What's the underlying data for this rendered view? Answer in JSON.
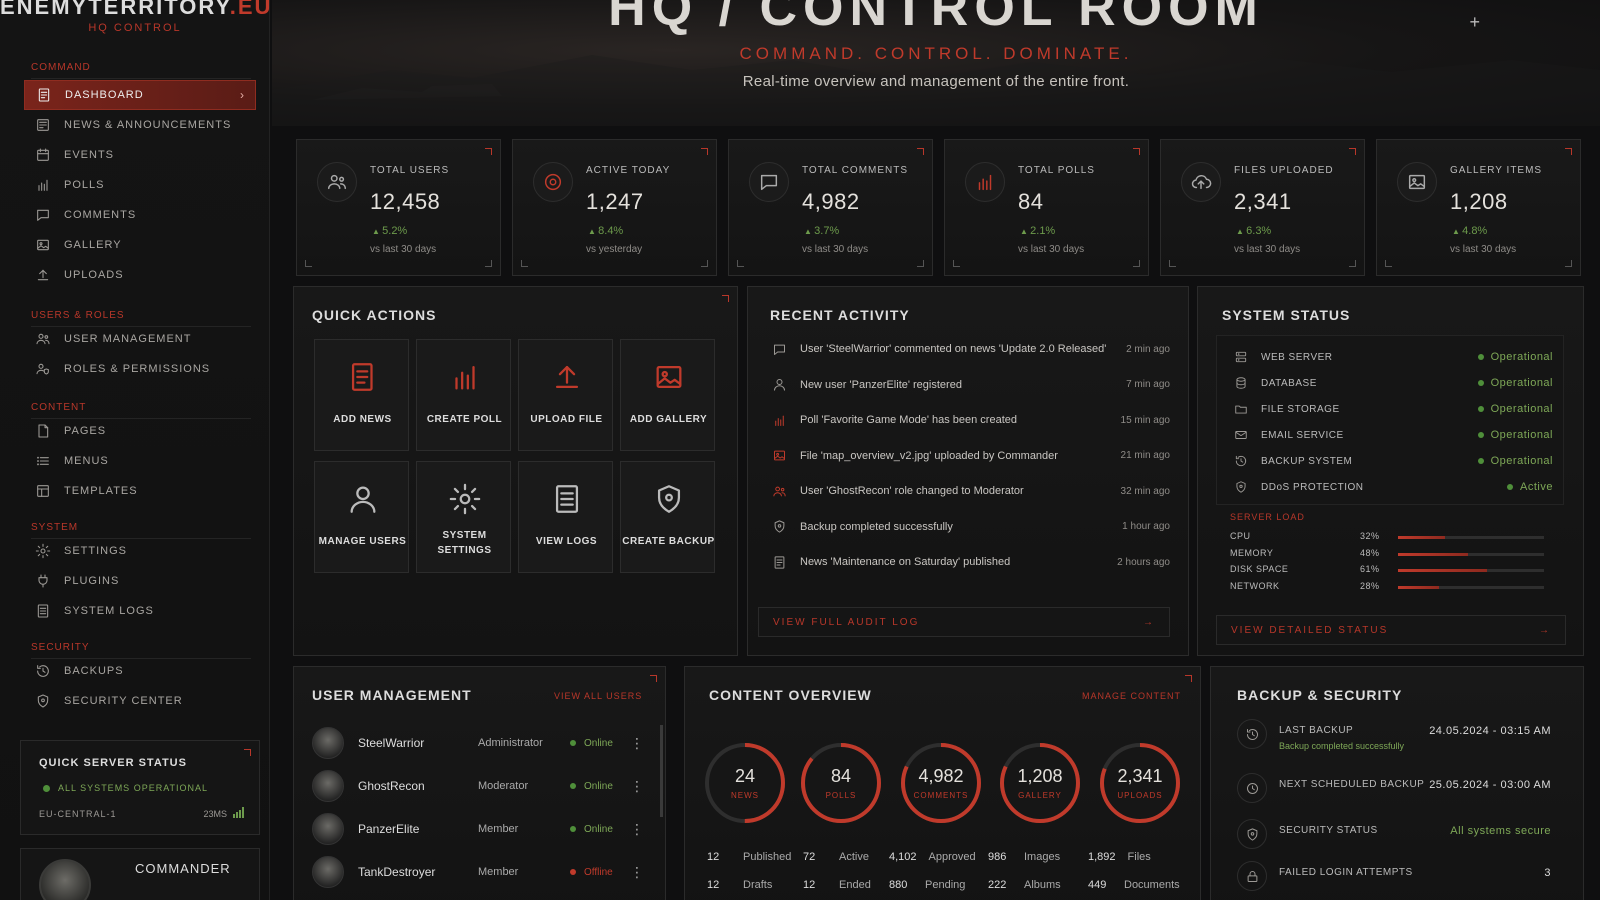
{
  "brand": {
    "name_main": "ENEMYTERRITORY",
    "name_tld": ".EU",
    "subtitle": "HQ CONTROL"
  },
  "sidebar": {
    "sections": [
      {
        "title": "COMMAND",
        "items": [
          {
            "label": "DASHBOARD",
            "icon": "document-icon",
            "active": true
          },
          {
            "label": "NEWS & ANNOUNCEMENTS",
            "icon": "news-icon"
          },
          {
            "label": "EVENTS",
            "icon": "calendar-icon"
          },
          {
            "label": "POLLS",
            "icon": "bar-chart-icon"
          },
          {
            "label": "COMMENTS",
            "icon": "comment-icon"
          },
          {
            "label": "GALLERY",
            "icon": "image-icon"
          },
          {
            "label": "UPLOADS",
            "icon": "upload-icon"
          }
        ]
      },
      {
        "title": "USERS & ROLES",
        "items": [
          {
            "label": "USER MANAGEMENT",
            "icon": "users-icon"
          },
          {
            "label": "ROLES & PERMISSIONS",
            "icon": "user-shield-icon"
          }
        ]
      },
      {
        "title": "CONTENT",
        "items": [
          {
            "label": "PAGES",
            "icon": "page-icon"
          },
          {
            "label": "MENUS",
            "icon": "menu-icon"
          },
          {
            "label": "TEMPLATES",
            "icon": "template-icon"
          }
        ]
      },
      {
        "title": "SYSTEM",
        "items": [
          {
            "label": "SETTINGS",
            "icon": "gear-icon"
          },
          {
            "label": "PLUGINS",
            "icon": "plugin-icon"
          },
          {
            "label": "SYSTEM LOGS",
            "icon": "log-icon"
          }
        ]
      },
      {
        "title": "SECURITY",
        "items": [
          {
            "label": "BACKUPS",
            "icon": "backup-icon"
          },
          {
            "label": "SECURITY CENTER",
            "icon": "shield-icon"
          }
        ]
      }
    ],
    "quick_server_status": {
      "title": "QUICK SERVER STATUS",
      "status": "ALL SYSTEMS OPERATIONAL",
      "region": "EU-CENTRAL-1",
      "ping": "23MS"
    },
    "user": {
      "name": "COMMANDER"
    }
  },
  "header": {
    "title": "HQ / CONTROL ROOM",
    "tagline": "COMMAND. CONTROL. DOMINATE.",
    "description": "Real-time overview and management of the entire front."
  },
  "stats": [
    {
      "label": "TOTAL USERS",
      "value": "12,458",
      "delta": "5.2%",
      "sub": "vs last 30 days",
      "icon": "users-icon"
    },
    {
      "label": "ACTIVE TODAY",
      "value": "1,247",
      "delta": "8.4%",
      "sub": "vs yesterday",
      "icon": "target-icon"
    },
    {
      "label": "TOTAL COMMENTS",
      "value": "4,982",
      "delta": "3.7%",
      "sub": "vs last 30 days",
      "icon": "comment-icon"
    },
    {
      "label": "TOTAL POLLS",
      "value": "84",
      "delta": "2.1%",
      "sub": "vs last 30 days",
      "icon": "bar-chart-icon"
    },
    {
      "label": "FILES UPLOADED",
      "value": "2,341",
      "delta": "6.3%",
      "sub": "vs last 30 days",
      "icon": "cloud-upload-icon"
    },
    {
      "label": "GALLERY ITEMS",
      "value": "1,208",
      "delta": "4.8%",
      "sub": "vs last 30 days",
      "icon": "image-icon"
    }
  ],
  "quick_actions": {
    "title": "QUICK ACTIONS",
    "items": [
      {
        "label": "ADD NEWS",
        "icon": "add-news-icon"
      },
      {
        "label": "CREATE POLL",
        "icon": "bar-chart-icon"
      },
      {
        "label": "UPLOAD FILE",
        "icon": "upload-icon"
      },
      {
        "label": "ADD GALLERY",
        "icon": "image-icon"
      },
      {
        "label": "MANAGE USERS",
        "icon": "user-icon"
      },
      {
        "label": "SYSTEM SETTINGS",
        "icon": "gear-icon"
      },
      {
        "label": "VIEW LOGS",
        "icon": "log-icon"
      },
      {
        "label": "CREATE BACKUP",
        "icon": "shield-icon"
      }
    ]
  },
  "recent_activity": {
    "title": "RECENT ACTIVITY",
    "items": [
      {
        "text": "User 'SteelWarrior' commented on news 'Update 2.0 Released'",
        "time": "2 min ago",
        "icon": "comment-icon"
      },
      {
        "text": "New user 'PanzerElite' registered",
        "time": "7 min ago",
        "icon": "user-icon"
      },
      {
        "text": "Poll 'Favorite Game Mode' has been created",
        "time": "15 min ago",
        "icon": "bar-chart-icon"
      },
      {
        "text": "File 'map_overview_v2.jpg' uploaded by Commander",
        "time": "21 min ago",
        "icon": "image-icon"
      },
      {
        "text": "User 'GhostRecon' role changed to Moderator",
        "time": "32 min ago",
        "icon": "users-icon"
      },
      {
        "text": "Backup completed successfully",
        "time": "1 hour ago",
        "icon": "shield-icon"
      },
      {
        "text": "News 'Maintenance on Saturday' published",
        "time": "2 hours ago",
        "icon": "document-icon"
      }
    ],
    "footer_link": "VIEW FULL AUDIT LOG"
  },
  "system_status": {
    "title": "SYSTEM STATUS",
    "services": [
      {
        "name": "WEB SERVER",
        "status": "Operational",
        "icon": "server-icon"
      },
      {
        "name": "DATABASE",
        "status": "Operational",
        "icon": "database-icon"
      },
      {
        "name": "FILE STORAGE",
        "status": "Operational",
        "icon": "folder-icon"
      },
      {
        "name": "EMAIL SERVICE",
        "status": "Operational",
        "icon": "mail-icon"
      },
      {
        "name": "BACKUP SYSTEM",
        "status": "Operational",
        "icon": "backup-icon"
      },
      {
        "name": "DDoS PROTECTION",
        "status": "Active",
        "icon": "shield-icon"
      }
    ],
    "server_load_title": "SERVER LOAD",
    "server_load": [
      {
        "name": "CPU",
        "value": "32%",
        "fraction": 0.32
      },
      {
        "name": "MEMORY",
        "value": "48%",
        "fraction": 0.48
      },
      {
        "name": "DISK SPACE",
        "value": "61%",
        "fraction": 0.61
      },
      {
        "name": "NETWORK",
        "value": "28%",
        "fraction": 0.28
      }
    ],
    "footer_link": "VIEW DETAILED STATUS"
  },
  "user_management": {
    "title": "USER MANAGEMENT",
    "link": "VIEW ALL USERS",
    "users": [
      {
        "name": "SteelWarrior",
        "role": "Administrator",
        "status": "Online"
      },
      {
        "name": "GhostRecon",
        "role": "Moderator",
        "status": "Online"
      },
      {
        "name": "PanzerElite",
        "role": "Member",
        "status": "Online"
      },
      {
        "name": "TankDestroyer",
        "role": "Member",
        "status": "Offline"
      }
    ]
  },
  "content_overview": {
    "title": "CONTENT OVERVIEW",
    "link": "MANAGE CONTENT",
    "rings": [
      {
        "value": "24",
        "label": "NEWS",
        "fraction": 0.5,
        "stats": [
          [
            "12",
            "Published"
          ],
          [
            "12",
            "Drafts"
          ]
        ]
      },
      {
        "value": "84",
        "label": "POLLS",
        "fraction": 0.86,
        "stats": [
          [
            "72",
            "Active"
          ],
          [
            "12",
            "Ended"
          ]
        ]
      },
      {
        "value": "4,982",
        "label": "COMMENTS",
        "fraction": 0.82,
        "stats": [
          [
            "4,102",
            "Approved"
          ],
          [
            "880",
            "Pending"
          ]
        ]
      },
      {
        "value": "1,208",
        "label": "GALLERY",
        "fraction": 0.82,
        "stats": [
          [
            "986",
            "Images"
          ],
          [
            "222",
            "Albums"
          ]
        ]
      },
      {
        "value": "2,341",
        "label": "UPLOADS",
        "fraction": 0.81,
        "stats": [
          [
            "1,892",
            "Files"
          ],
          [
            "449",
            "Documents"
          ]
        ]
      }
    ]
  },
  "backup_security": {
    "title": "BACKUP & SECURITY",
    "rows": [
      {
        "label": "LAST BACKUP",
        "value": "24.05.2024 - 03:15 AM",
        "sub": "Backup completed successfully",
        "icon": "backup-icon"
      },
      {
        "label": "NEXT SCHEDULED BACKUP",
        "value": "25.05.2024 - 03:00 AM",
        "icon": "clock-icon"
      },
      {
        "label": "SECURITY STATUS",
        "value": "All systems secure",
        "icon": "shield-icon",
        "value_color": "#7ea857"
      },
      {
        "label": "FAILED LOGIN ATTEMPTS",
        "value": "3",
        "icon": "lock-icon"
      }
    ]
  },
  "colors": {
    "accent": "#c03a2b",
    "ok": "#4f8f3a",
    "offline": "#c03a2b"
  }
}
